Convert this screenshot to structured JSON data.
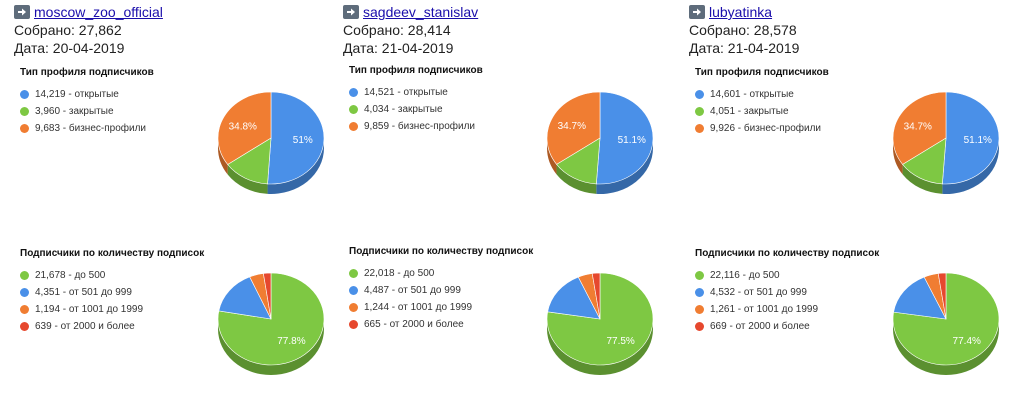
{
  "accounts": [
    {
      "name": "moscow_zoo_official",
      "collected": "Собрано: 27,862",
      "date": "Дата: 20-04-2019",
      "profile_types": {
        "title": "Тип профиля подписчиков",
        "legend": [
          "14,219 - открытые",
          "3,960 - закрытые",
          "9,683 - бизнес-профили"
        ],
        "slice_labels": [
          "51%",
          "",
          "34.8%"
        ]
      },
      "subscriptions": {
        "title": "Подписчики по количеству подписок",
        "legend": [
          "21,678 - до 500",
          "4,351 - от 501 до 999",
          "1,194 - от 1001 до 1999",
          "639 - от 2000 и более"
        ],
        "slice_labels": [
          "77.8%",
          "",
          "",
          ""
        ]
      }
    },
    {
      "name": "sagdeev_stanislav",
      "collected": "Собрано: 28,414",
      "date": "Дата: 21-04-2019",
      "profile_types": {
        "title": "Тип профиля подписчиков",
        "legend": [
          "14,521 - открытые",
          "4,034 - закрытые",
          "9,859 - бизнес-профили"
        ],
        "slice_labels": [
          "51.1%",
          "",
          "34.7%"
        ]
      },
      "subscriptions": {
        "title": "Подписчики по количеству подписок",
        "legend": [
          "22,018 - до 500",
          "4,487 - от 501 до 999",
          "1,244 - от 1001 до 1999",
          "665 - от 2000 и более"
        ],
        "slice_labels": [
          "77.5%",
          "",
          "",
          ""
        ]
      }
    },
    {
      "name": "lubyatinka",
      "collected": "Собрано: 28,578",
      "date": "Дата: 21-04-2019",
      "profile_types": {
        "title": "Тип профиля подписчиков",
        "legend": [
          "14,601 - открытые",
          "4,051 - закрытые",
          "9,926 - бизнес-профили"
        ],
        "slice_labels": [
          "51.1%",
          "",
          "34.7%"
        ]
      },
      "subscriptions": {
        "title": "Подписчики по количеству подписок",
        "legend": [
          "22,116 - до 500",
          "4,532 - от 501 до 999",
          "1,261 - от 1001 до 1999",
          "669 - от 2000 и более"
        ],
        "slice_labels": [
          "77.4%",
          "",
          "",
          ""
        ]
      }
    }
  ],
  "colors": {
    "open": "#4a90e8",
    "closed": "#7ec843",
    "business": "#f07d32",
    "upto500": "#7ec843",
    "501_999": "#4a90e8",
    "1001_1999": "#f07d32",
    "2000plus": "#e6482e"
  },
  "chart_data": [
    {
      "type": "pie",
      "title": "Тип профиля подписчиков",
      "account": "moscow_zoo_official",
      "categories": [
        "открытые",
        "закрытые",
        "бизнес-профили"
      ],
      "values": [
        14219,
        3960,
        9683
      ]
    },
    {
      "type": "pie",
      "title": "Подписчики по количеству подписок",
      "account": "moscow_zoo_official",
      "categories": [
        "до 500",
        "от 501 до 999",
        "от 1001 до 1999",
        "от 2000 и более"
      ],
      "values": [
        21678,
        4351,
        1194,
        639
      ]
    },
    {
      "type": "pie",
      "title": "Тип профиля подписчиков",
      "account": "sagdeev_stanislav",
      "categories": [
        "открытые",
        "закрытые",
        "бизнес-профили"
      ],
      "values": [
        14521,
        4034,
        9859
      ]
    },
    {
      "type": "pie",
      "title": "Подписчики по количеству подписок",
      "account": "sagdeev_stanislav",
      "categories": [
        "до 500",
        "от 501 до 999",
        "от 1001 до 1999",
        "от 2000 и более"
      ],
      "values": [
        22018,
        4487,
        1244,
        665
      ]
    },
    {
      "type": "pie",
      "title": "Тип профиля подписчиков",
      "account": "lubyatinka",
      "categories": [
        "открытые",
        "закрытые",
        "бизнес-профили"
      ],
      "values": [
        14601,
        4051,
        9926
      ]
    },
    {
      "type": "pie",
      "title": "Подписчики по количеству подписок",
      "account": "lubyatinka",
      "categories": [
        "до 500",
        "от 501 до 999",
        "от 1001 до 1999",
        "от 2000 и более"
      ],
      "values": [
        22116,
        4532,
        1261,
        669
      ]
    }
  ]
}
